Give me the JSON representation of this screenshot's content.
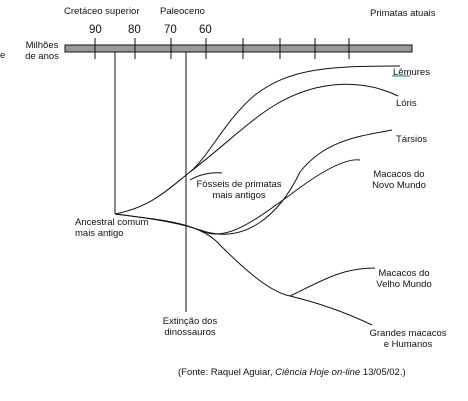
{
  "header": {
    "period_cretaceous": "Cretáceo superior",
    "period_paleocene": "Paleoceno",
    "period_now": "Primatas atuais",
    "axis_label_line1": "Milhões",
    "axis_label_line2": "de anos",
    "edge_mark": "e"
  },
  "axis_ticks": [
    "90",
    "80",
    "70",
    "60"
  ],
  "nodes": {
    "ancestor_line1": "Ancestral comum",
    "ancestor_line2": "mais antigo",
    "fossils_line1": "Fósseis de primatas",
    "fossils_line2": "mais antigos",
    "extinction_line1": "Extinção dos",
    "extinction_line2": "dinossauros"
  },
  "groups": {
    "lemurs": "Lêmures",
    "loris": "Lóris",
    "tarsiers": "Társios",
    "new_world_line1": "Macacos do",
    "new_world_line2": "Novo Mundo",
    "old_world_line1": "Macacos do",
    "old_world_line2": "Velho Mundo",
    "apes_line1": "Grandes macacos",
    "apes_line2": "e Humanos"
  },
  "source": {
    "prefix": "(Fonte: Raquel Aguiar, ",
    "journal": "Ciência Hoje on-line",
    "suffix": " 13/05/02.)"
  },
  "colors": {
    "timebar_fill": "#9a9a9a",
    "line": "#111111",
    "lemur_underline": "#5aa7b5"
  }
}
